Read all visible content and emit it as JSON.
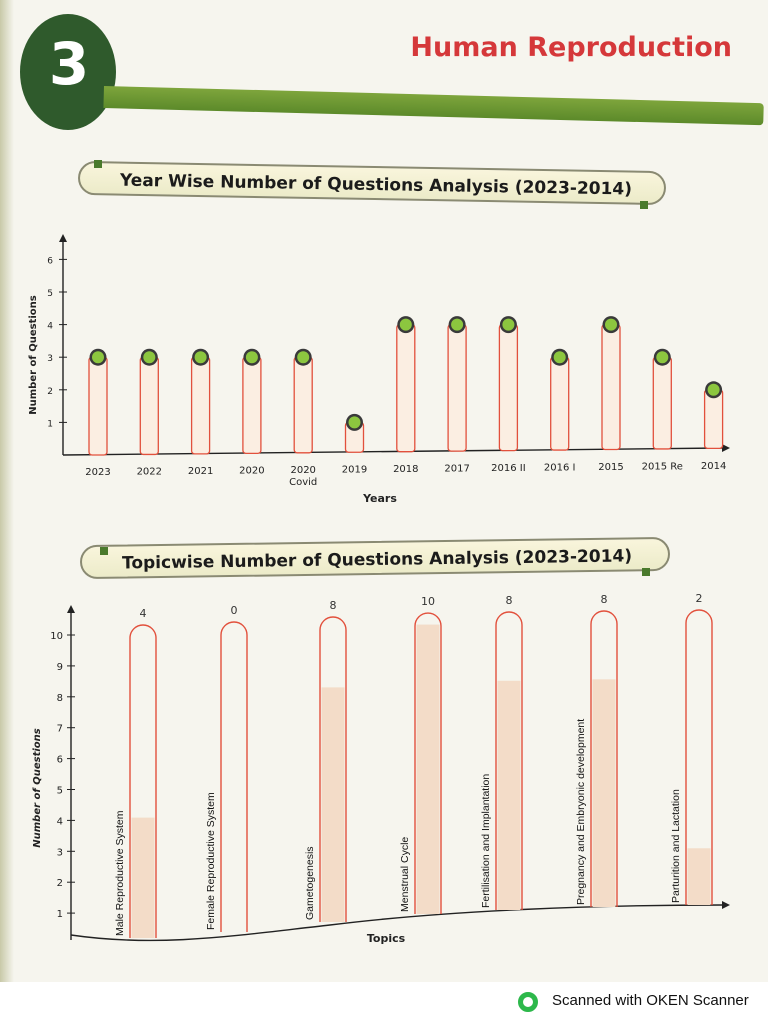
{
  "chapter": {
    "number": "3",
    "title": "Human Reproduction"
  },
  "colors": {
    "bar_outline": "#e2503c",
    "bar_fill": "#fbeee2",
    "tube_fill": "#f3dcc8",
    "marker": "#8cc63f",
    "header_green": "#2f5a2c",
    "title_red": "#d5383a"
  },
  "chart_data": [
    {
      "type": "bar",
      "title": "Year Wise Number of Questions Analysis (2023-2014)",
      "xlabel": "Years",
      "ylabel": "Number of Questions",
      "categories": [
        "2023",
        "2022",
        "2021",
        "2020",
        "2020\nCovid",
        "2019",
        "2018",
        "2017",
        "2016 II",
        "2016 I",
        "2015",
        "2015 Re",
        "2014"
      ],
      "values": [
        3,
        3,
        3,
        3,
        3,
        1,
        4,
        4,
        4,
        3,
        4,
        3,
        2
      ],
      "yticks": [
        1,
        2,
        3,
        4,
        5,
        6
      ],
      "ylim": [
        0,
        6.5
      ]
    },
    {
      "type": "bar",
      "title": "Topicwise Number of Questions Analysis (2023-2014)",
      "xlabel": "Topics",
      "ylabel": "Number of Questions",
      "categories": [
        "Male Reproductive System",
        "Female Reproductive System",
        "Gametogenesis",
        "Menstrual Cycle",
        "Fertilisation and Implantation",
        "Pregnancy and Embryonic development",
        "Parturition and Lactation"
      ],
      "values": [
        4,
        0,
        8,
        10,
        8,
        8,
        2
      ],
      "yticks": [
        1,
        2,
        3,
        4,
        5,
        6,
        7,
        8,
        9,
        10
      ],
      "ylim": [
        0,
        10.5
      ]
    }
  ],
  "footer": {
    "scanner_text": "Scanned with OKEN Scanner"
  }
}
